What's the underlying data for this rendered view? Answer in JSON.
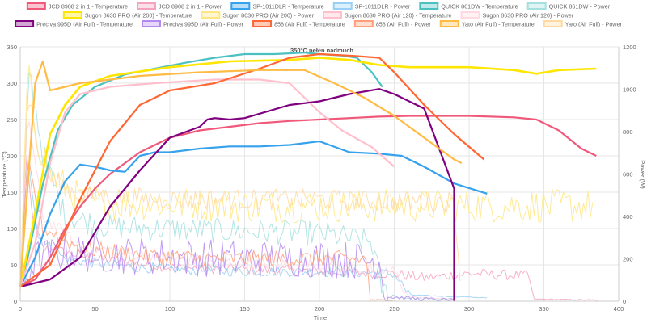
{
  "chart_data": {
    "type": "line",
    "title": "350°C pełen nadmuch",
    "xlabel": "Time",
    "ylabel_left": "Temperature (°C)",
    "ylabel_right": "Power (W)",
    "xlim": [
      0,
      400
    ],
    "ylim_left": [
      0,
      350
    ],
    "ylim_right": [
      0,
      1200
    ],
    "x_ticks": [
      0,
      50,
      100,
      150,
      200,
      250,
      300,
      350,
      400
    ],
    "y_left_ticks": [
      0,
      50,
      100,
      150,
      200,
      250,
      300,
      350
    ],
    "y_right_ticks": [
      0,
      200,
      400,
      600,
      800,
      1000,
      1200
    ],
    "legend_position": "top",
    "series": [
      {
        "name": "JCD 8908 2 in 1 - Temperature",
        "axis": "left",
        "color": "#f0597a",
        "width": 2.2,
        "points": [
          [
            0,
            20
          ],
          [
            10,
            30
          ],
          [
            20,
            60
          ],
          [
            30,
            100
          ],
          [
            40,
            130
          ],
          [
            50,
            155
          ],
          [
            60,
            175
          ],
          [
            70,
            190
          ],
          [
            80,
            205
          ],
          [
            90,
            215
          ],
          [
            100,
            225
          ],
          [
            120,
            235
          ],
          [
            140,
            240
          ],
          [
            160,
            245
          ],
          [
            180,
            248
          ],
          [
            200,
            250
          ],
          [
            220,
            252
          ],
          [
            240,
            254
          ],
          [
            260,
            255
          ],
          [
            280,
            255
          ],
          [
            300,
            255
          ],
          [
            330,
            253
          ],
          [
            345,
            250
          ],
          [
            360,
            235
          ],
          [
            375,
            210
          ],
          [
            385,
            200
          ]
        ]
      },
      {
        "name": "JCD 8908 2 in 1 - Power",
        "axis": "right",
        "color": "#f4a3bf",
        "width": 1,
        "noisy": true,
        "noise": 25,
        "points": [
          [
            0,
            60
          ],
          [
            4,
            700
          ],
          [
            8,
            400
          ],
          [
            15,
            250
          ],
          [
            25,
            240
          ],
          [
            50,
            200
          ],
          [
            100,
            160
          ],
          [
            150,
            150
          ],
          [
            200,
            140
          ],
          [
            250,
            130
          ],
          [
            270,
            110
          ],
          [
            300,
            130
          ],
          [
            340,
            120
          ],
          [
            343,
            10
          ],
          [
            386,
            5
          ]
        ]
      },
      {
        "name": "SP-1011DLR - Temperature",
        "axis": "left",
        "color": "#36a2eb",
        "width": 2.2,
        "points": [
          [
            0,
            20
          ],
          [
            10,
            60
          ],
          [
            20,
            120
          ],
          [
            30,
            165
          ],
          [
            40,
            188
          ],
          [
            50,
            185
          ],
          [
            60,
            180
          ],
          [
            70,
            178
          ],
          [
            80,
            200
          ],
          [
            90,
            205
          ],
          [
            100,
            205
          ],
          [
            120,
            210
          ],
          [
            140,
            213
          ],
          [
            160,
            213
          ],
          [
            180,
            215
          ],
          [
            200,
            220
          ],
          [
            220,
            205
          ],
          [
            240,
            203
          ],
          [
            255,
            200
          ],
          [
            270,
            185
          ],
          [
            290,
            162
          ],
          [
            312,
            148
          ]
        ]
      },
      {
        "name": "SP-1011DLR - Power",
        "axis": "right",
        "color": "#9ad0f5",
        "width": 1,
        "noisy": true,
        "noise": 25,
        "points": [
          [
            0,
            60
          ],
          [
            5,
            700
          ],
          [
            12,
            300
          ],
          [
            30,
            200
          ],
          [
            60,
            170
          ],
          [
            100,
            150
          ],
          [
            150,
            140
          ],
          [
            200,
            140
          ],
          [
            250,
            130
          ],
          [
            260,
            30
          ],
          [
            275,
            25
          ],
          [
            300,
            20
          ],
          [
            312,
            15
          ]
        ]
      },
      {
        "name": "QUICK 861DW - Temperature",
        "axis": "left",
        "color": "#4bc0c0",
        "width": 2.2,
        "points": [
          [
            0,
            20
          ],
          [
            5,
            60
          ],
          [
            15,
            160
          ],
          [
            25,
            235
          ],
          [
            35,
            270
          ],
          [
            50,
            295
          ],
          [
            70,
            312
          ],
          [
            90,
            320
          ],
          [
            110,
            328
          ],
          [
            130,
            335
          ],
          [
            150,
            340
          ],
          [
            170,
            340
          ],
          [
            190,
            342
          ],
          [
            200,
            340
          ],
          [
            215,
            338
          ],
          [
            225,
            335
          ],
          [
            235,
            315
          ],
          [
            242,
            295
          ]
        ]
      },
      {
        "name": "QUICK 861DW - Power",
        "axis": "right",
        "color": "#a5dfdf",
        "width": 1,
        "noisy": true,
        "noise": 60,
        "points": [
          [
            0,
            60
          ],
          [
            6,
            1100
          ],
          [
            15,
            700
          ],
          [
            30,
            400
          ],
          [
            60,
            350
          ],
          [
            100,
            340
          ],
          [
            150,
            330
          ],
          [
            200,
            320
          ],
          [
            235,
            280
          ],
          [
            242,
            50
          ],
          [
            252,
            20
          ],
          [
            270,
            10
          ],
          [
            290,
            8
          ]
        ]
      },
      {
        "name": "Sugon 8630 PRO (Air 200) - Temperature",
        "axis": "left",
        "color": "#ffe600",
        "width": 2.6,
        "points": [
          [
            0,
            20
          ],
          [
            8,
            100
          ],
          [
            20,
            230
          ],
          [
            30,
            270
          ],
          [
            40,
            295
          ],
          [
            60,
            310
          ],
          [
            100,
            322
          ],
          [
            140,
            330
          ],
          [
            180,
            332
          ],
          [
            200,
            335
          ],
          [
            220,
            332
          ],
          [
            240,
            325
          ],
          [
            260,
            322
          ],
          [
            300,
            322
          ],
          [
            330,
            318
          ],
          [
            345,
            313
          ],
          [
            360,
            318
          ],
          [
            385,
            320
          ]
        ]
      },
      {
        "name": "Sugon 8630 PRO (Air 200) - Power",
        "axis": "right",
        "color": "#ffe680",
        "width": 1,
        "noisy": true,
        "noise": 80,
        "points": [
          [
            0,
            60
          ],
          [
            5,
            1100
          ],
          [
            10,
            800
          ],
          [
            20,
            600
          ],
          [
            40,
            480
          ],
          [
            60,
            460
          ],
          [
            100,
            460
          ],
          [
            150,
            450
          ],
          [
            200,
            450
          ],
          [
            250,
            450
          ],
          [
            300,
            450
          ],
          [
            350,
            450
          ],
          [
            385,
            450
          ]
        ]
      },
      {
        "name": "Sugon 8630 PRO (Air 120) - Temperature",
        "axis": "left",
        "color": "#ffbfcc",
        "width": 2.2,
        "points": [
          [
            0,
            20
          ],
          [
            10,
            80
          ],
          [
            20,
            190
          ],
          [
            30,
            260
          ],
          [
            40,
            285
          ],
          [
            60,
            295
          ],
          [
            90,
            300
          ],
          [
            130,
            305
          ],
          [
            160,
            305
          ],
          [
            180,
            300
          ],
          [
            190,
            280
          ],
          [
            200,
            260
          ],
          [
            215,
            235
          ],
          [
            235,
            212
          ],
          [
            250,
            185
          ]
        ]
      },
      {
        "name": "Sugon 8630 PRO (Air 120) - Power",
        "axis": "right",
        "color": "#ffd9e2",
        "width": 1,
        "noisy": true,
        "noise": 30,
        "points": [
          [
            0,
            60
          ],
          [
            5,
            900
          ],
          [
            15,
            400
          ],
          [
            40,
            260
          ],
          [
            100,
            200
          ],
          [
            150,
            180
          ],
          [
            200,
            170
          ],
          [
            250,
            140
          ],
          [
            260,
            20
          ],
          [
            290,
            10
          ]
        ]
      },
      {
        "name": "Preciva 995D (Air Full) - Temperature",
        "axis": "left",
        "color": "#800080",
        "width": 2.2,
        "points": [
          [
            0,
            20
          ],
          [
            20,
            30
          ],
          [
            40,
            60
          ],
          [
            60,
            130
          ],
          [
            80,
            180
          ],
          [
            100,
            225
          ],
          [
            120,
            240
          ],
          [
            125,
            250
          ],
          [
            130,
            252
          ],
          [
            140,
            250
          ],
          [
            150,
            252
          ],
          [
            160,
            258
          ],
          [
            180,
            270
          ],
          [
            200,
            275
          ],
          [
            220,
            285
          ],
          [
            240,
            292
          ],
          [
            250,
            285
          ],
          [
            270,
            265
          ],
          [
            290,
            155
          ],
          [
            290,
            0
          ]
        ]
      },
      {
        "name": "Preciva 995D (Air Full) - Power",
        "axis": "right",
        "color": "#b58af0",
        "width": 1,
        "noisy": true,
        "noise": 90,
        "points": [
          [
            0,
            60
          ],
          [
            10,
            200
          ],
          [
            30,
            230
          ],
          [
            60,
            220
          ],
          [
            100,
            210
          ],
          [
            150,
            200
          ],
          [
            200,
            200
          ],
          [
            240,
            190
          ],
          [
            245,
            20
          ],
          [
            270,
            10
          ],
          [
            290,
            5
          ]
        ]
      },
      {
        "name": "858 (Air Full) - Temperature",
        "axis": "left",
        "color": "#ff6633",
        "width": 2.2,
        "points": [
          [
            0,
            20
          ],
          [
            20,
            50
          ],
          [
            40,
            140
          ],
          [
            60,
            220
          ],
          [
            80,
            270
          ],
          [
            100,
            290
          ],
          [
            130,
            300
          ],
          [
            160,
            320
          ],
          [
            180,
            335
          ],
          [
            200,
            340
          ],
          [
            220,
            338
          ],
          [
            240,
            335
          ],
          [
            250,
            315
          ],
          [
            270,
            270
          ],
          [
            290,
            230
          ],
          [
            310,
            195
          ]
        ]
      },
      {
        "name": "858 (Air Full) - Power",
        "axis": "right",
        "color": "#ffa07a",
        "width": 1,
        "noisy": true,
        "noise": 40,
        "points": [
          [
            0,
            60
          ],
          [
            5,
            650
          ],
          [
            15,
            350
          ],
          [
            40,
            250
          ],
          [
            80,
            220
          ],
          [
            120,
            200
          ],
          [
            160,
            200
          ],
          [
            200,
            200
          ],
          [
            230,
            200
          ],
          [
            232,
            180
          ],
          [
            234,
            5
          ],
          [
            250,
            5
          ]
        ]
      },
      {
        "name": "Yato (Air Full) - Temperature",
        "axis": "left",
        "color": "#ffbb44",
        "width": 2.2,
        "points": [
          [
            0,
            20
          ],
          [
            5,
            160
          ],
          [
            10,
            300
          ],
          [
            15,
            330
          ],
          [
            20,
            290
          ],
          [
            40,
            300
          ],
          [
            80,
            310
          ],
          [
            120,
            315
          ],
          [
            160,
            318
          ],
          [
            190,
            318
          ],
          [
            210,
            300
          ],
          [
            230,
            280
          ],
          [
            250,
            255
          ],
          [
            270,
            225
          ],
          [
            290,
            195
          ],
          [
            295,
            190
          ]
        ]
      },
      {
        "name": "Yato (Air Full) - Power",
        "axis": "right",
        "color": "#ffd9a0",
        "width": 1,
        "noisy": true,
        "noise": 50,
        "points": [
          [
            0,
            60
          ],
          [
            5,
            1000
          ],
          [
            15,
            600
          ],
          [
            40,
            500
          ],
          [
            100,
            480
          ],
          [
            150,
            480
          ],
          [
            200,
            480
          ],
          [
            250,
            470
          ],
          [
            290,
            470
          ],
          [
            295,
            20
          ]
        ]
      }
    ]
  }
}
